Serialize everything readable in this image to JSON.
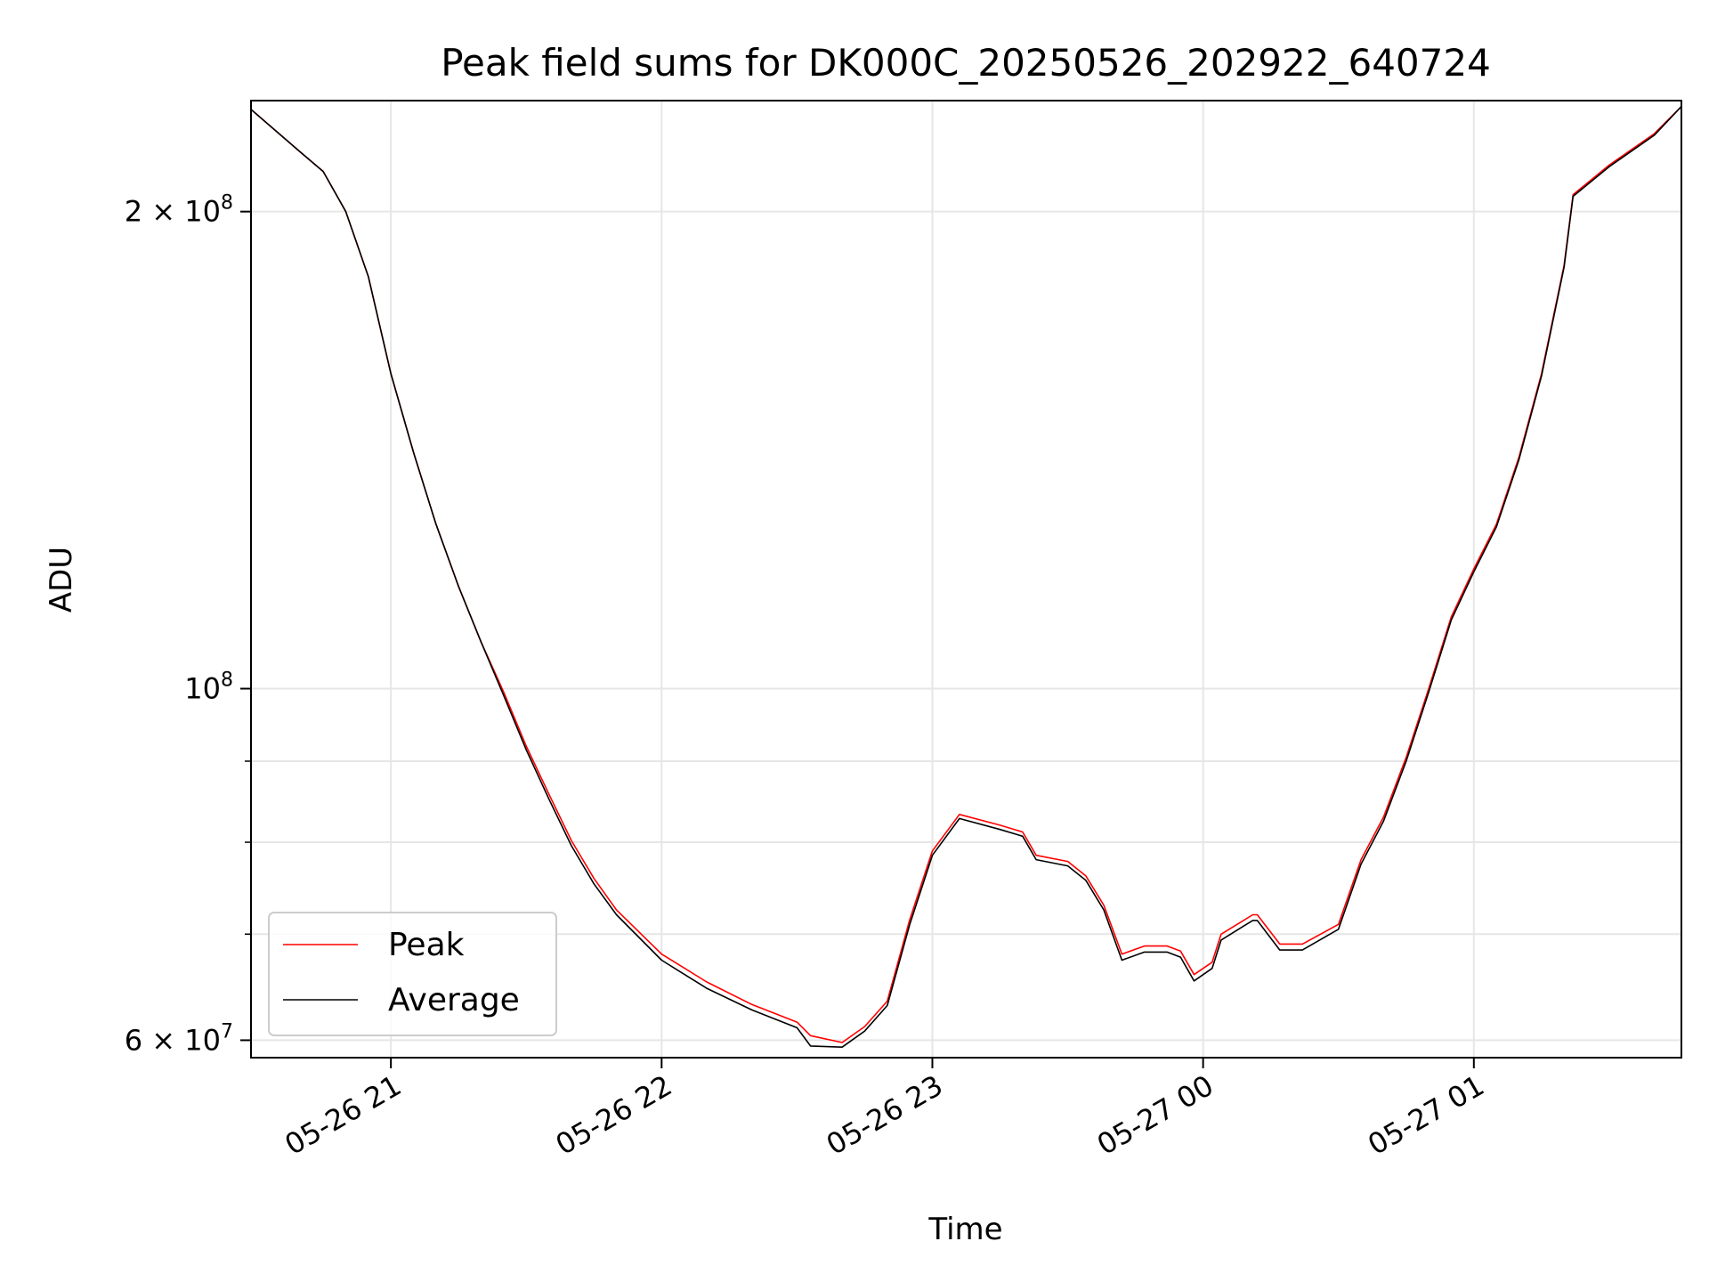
{
  "chart_data": {
    "type": "line",
    "title": "Peak field sums for DK000C_20250526_202922_640724",
    "xlabel": "Time",
    "ylabel": "ADU",
    "yscale": "log",
    "grid": true,
    "legend": "lower-left",
    "xlim": [
      "2025-05-26 20:29",
      "2025-05-27 01:46"
    ],
    "ylim": [
      58500000,
      235000000
    ],
    "x_ticks": [
      "05-26 21",
      "05-26 22",
      "05-26 23",
      "05-27 00",
      "05-27 01"
    ],
    "y_ticks": [
      {
        "value": 60000000,
        "base": "6 × 10",
        "exp": "7"
      },
      {
        "value": 100000000,
        "base": "10",
        "exp": "8"
      },
      {
        "value": 200000000,
        "base": "2 × 10",
        "exp": "8"
      }
    ],
    "y_minor_ticks": [
      70000000,
      80000000,
      90000000
    ],
    "series": [
      {
        "name": "Peak",
        "color": "#ff0000",
        "x": [
          "2025-05-26 20:29",
          "2025-05-26 20:40",
          "2025-05-26 20:45",
          "2025-05-26 20:50",
          "2025-05-26 20:55",
          "2025-05-26 21:00",
          "2025-05-26 21:05",
          "2025-05-26 21:10",
          "2025-05-26 21:15",
          "2025-05-26 21:20",
          "2025-05-26 21:25",
          "2025-05-26 21:30",
          "2025-05-26 21:35",
          "2025-05-26 21:40",
          "2025-05-26 21:45",
          "2025-05-26 21:50",
          "2025-05-26 22:00",
          "2025-05-26 22:10",
          "2025-05-26 22:20",
          "2025-05-26 22:30",
          "2025-05-26 22:33",
          "2025-05-26 22:40",
          "2025-05-26 22:45",
          "2025-05-26 22:50",
          "2025-05-26 22:55",
          "2025-05-26 23:00",
          "2025-05-26 23:06",
          "2025-05-26 23:15",
          "2025-05-26 23:20",
          "2025-05-26 23:23",
          "2025-05-26 23:30",
          "2025-05-26 23:34",
          "2025-05-26 23:38",
          "2025-05-26 23:42",
          "2025-05-26 23:47",
          "2025-05-26 23:52",
          "2025-05-26 23:55",
          "2025-05-26 23:58",
          "2025-05-27 00:02",
          "2025-05-27 00:04",
          "2025-05-27 00:11",
          "2025-05-27 00:12",
          "2025-05-27 00:17",
          "2025-05-27 00:22",
          "2025-05-27 00:30",
          "2025-05-27 00:35",
          "2025-05-27 00:40",
          "2025-05-27 00:45",
          "2025-05-27 00:50",
          "2025-05-27 00:55",
          "2025-05-27 01:00",
          "2025-05-27 01:05",
          "2025-05-27 01:10",
          "2025-05-27 01:15",
          "2025-05-27 01:20",
          "2025-05-27 01:22",
          "2025-05-27 01:30",
          "2025-05-27 01:40",
          "2025-05-27 01:46"
        ],
        "values": [
          232000000,
          218000000,
          212000000,
          200000000,
          182000000,
          158000000,
          141000000,
          127000000,
          116000000,
          107000000,
          99500000,
          92000000,
          85800000,
          80200000,
          75900000,
          72500000,
          68000000,
          65300000,
          63200000,
          61600000,
          60400000,
          59800000,
          61200000,
          63500000,
          71500000,
          79000000,
          83300000,
          82000000,
          81200000,
          78500000,
          77800000,
          76200000,
          73000000,
          68000000,
          68800000,
          68800000,
          68300000,
          66000000,
          67200000,
          70000000,
          72000000,
          72000000,
          69000000,
          69000000,
          71000000,
          78000000,
          83000000,
          90500000,
          100000000,
          111000000,
          119000000,
          127000000,
          140000000,
          158000000,
          185000000,
          205000000,
          214000000,
          224000000,
          233000000
        ]
      },
      {
        "name": "Average",
        "color": "#000000",
        "x": [
          "2025-05-26 20:29",
          "2025-05-26 20:40",
          "2025-05-26 20:45",
          "2025-05-26 20:50",
          "2025-05-26 20:55",
          "2025-05-26 21:00",
          "2025-05-26 21:05",
          "2025-05-26 21:10",
          "2025-05-26 21:15",
          "2025-05-26 21:20",
          "2025-05-26 21:25",
          "2025-05-26 21:30",
          "2025-05-26 21:35",
          "2025-05-26 21:40",
          "2025-05-26 21:45",
          "2025-05-26 21:50",
          "2025-05-26 22:00",
          "2025-05-26 22:10",
          "2025-05-26 22:20",
          "2025-05-26 22:30",
          "2025-05-26 22:33",
          "2025-05-26 22:40",
          "2025-05-26 22:45",
          "2025-05-26 22:50",
          "2025-05-26 22:55",
          "2025-05-26 23:00",
          "2025-05-26 23:06",
          "2025-05-26 23:15",
          "2025-05-26 23:20",
          "2025-05-26 23:23",
          "2025-05-26 23:30",
          "2025-05-26 23:34",
          "2025-05-26 23:38",
          "2025-05-26 23:42",
          "2025-05-26 23:47",
          "2025-05-26 23:52",
          "2025-05-26 23:55",
          "2025-05-26 23:58",
          "2025-05-27 00:02",
          "2025-05-27 00:04",
          "2025-05-27 00:11",
          "2025-05-27 00:12",
          "2025-05-27 00:17",
          "2025-05-27 00:22",
          "2025-05-27 00:30",
          "2025-05-27 00:35",
          "2025-05-27 00:40",
          "2025-05-27 00:45",
          "2025-05-27 00:50",
          "2025-05-27 00:55",
          "2025-05-27 01:00",
          "2025-05-27 01:05",
          "2025-05-27 01:10",
          "2025-05-27 01:15",
          "2025-05-27 01:20",
          "2025-05-27 01:22",
          "2025-05-27 01:30",
          "2025-05-27 01:40",
          "2025-05-27 01:46"
        ],
        "values": [
          232000000,
          218000000,
          212000000,
          200000000,
          182000000,
          158000000,
          141000000,
          127000000,
          116000000,
          107000000,
          99000000,
          91500000,
          85200000,
          79600000,
          75300000,
          72000000,
          67400000,
          64700000,
          62700000,
          61100000,
          59500000,
          59400000,
          60800000,
          63100000,
          71000000,
          78500000,
          82800000,
          81500000,
          80700000,
          78000000,
          77300000,
          75700000,
          72500000,
          67400000,
          68200000,
          68200000,
          67700000,
          65400000,
          66600000,
          69400000,
          71400000,
          71400000,
          68400000,
          68400000,
          70500000,
          77500000,
          82500000,
          90000000,
          99500000,
          110500000,
          118500000,
          126500000,
          139500000,
          157500000,
          184500000,
          204500000,
          213500000,
          223500000,
          233000000
        ]
      }
    ]
  }
}
